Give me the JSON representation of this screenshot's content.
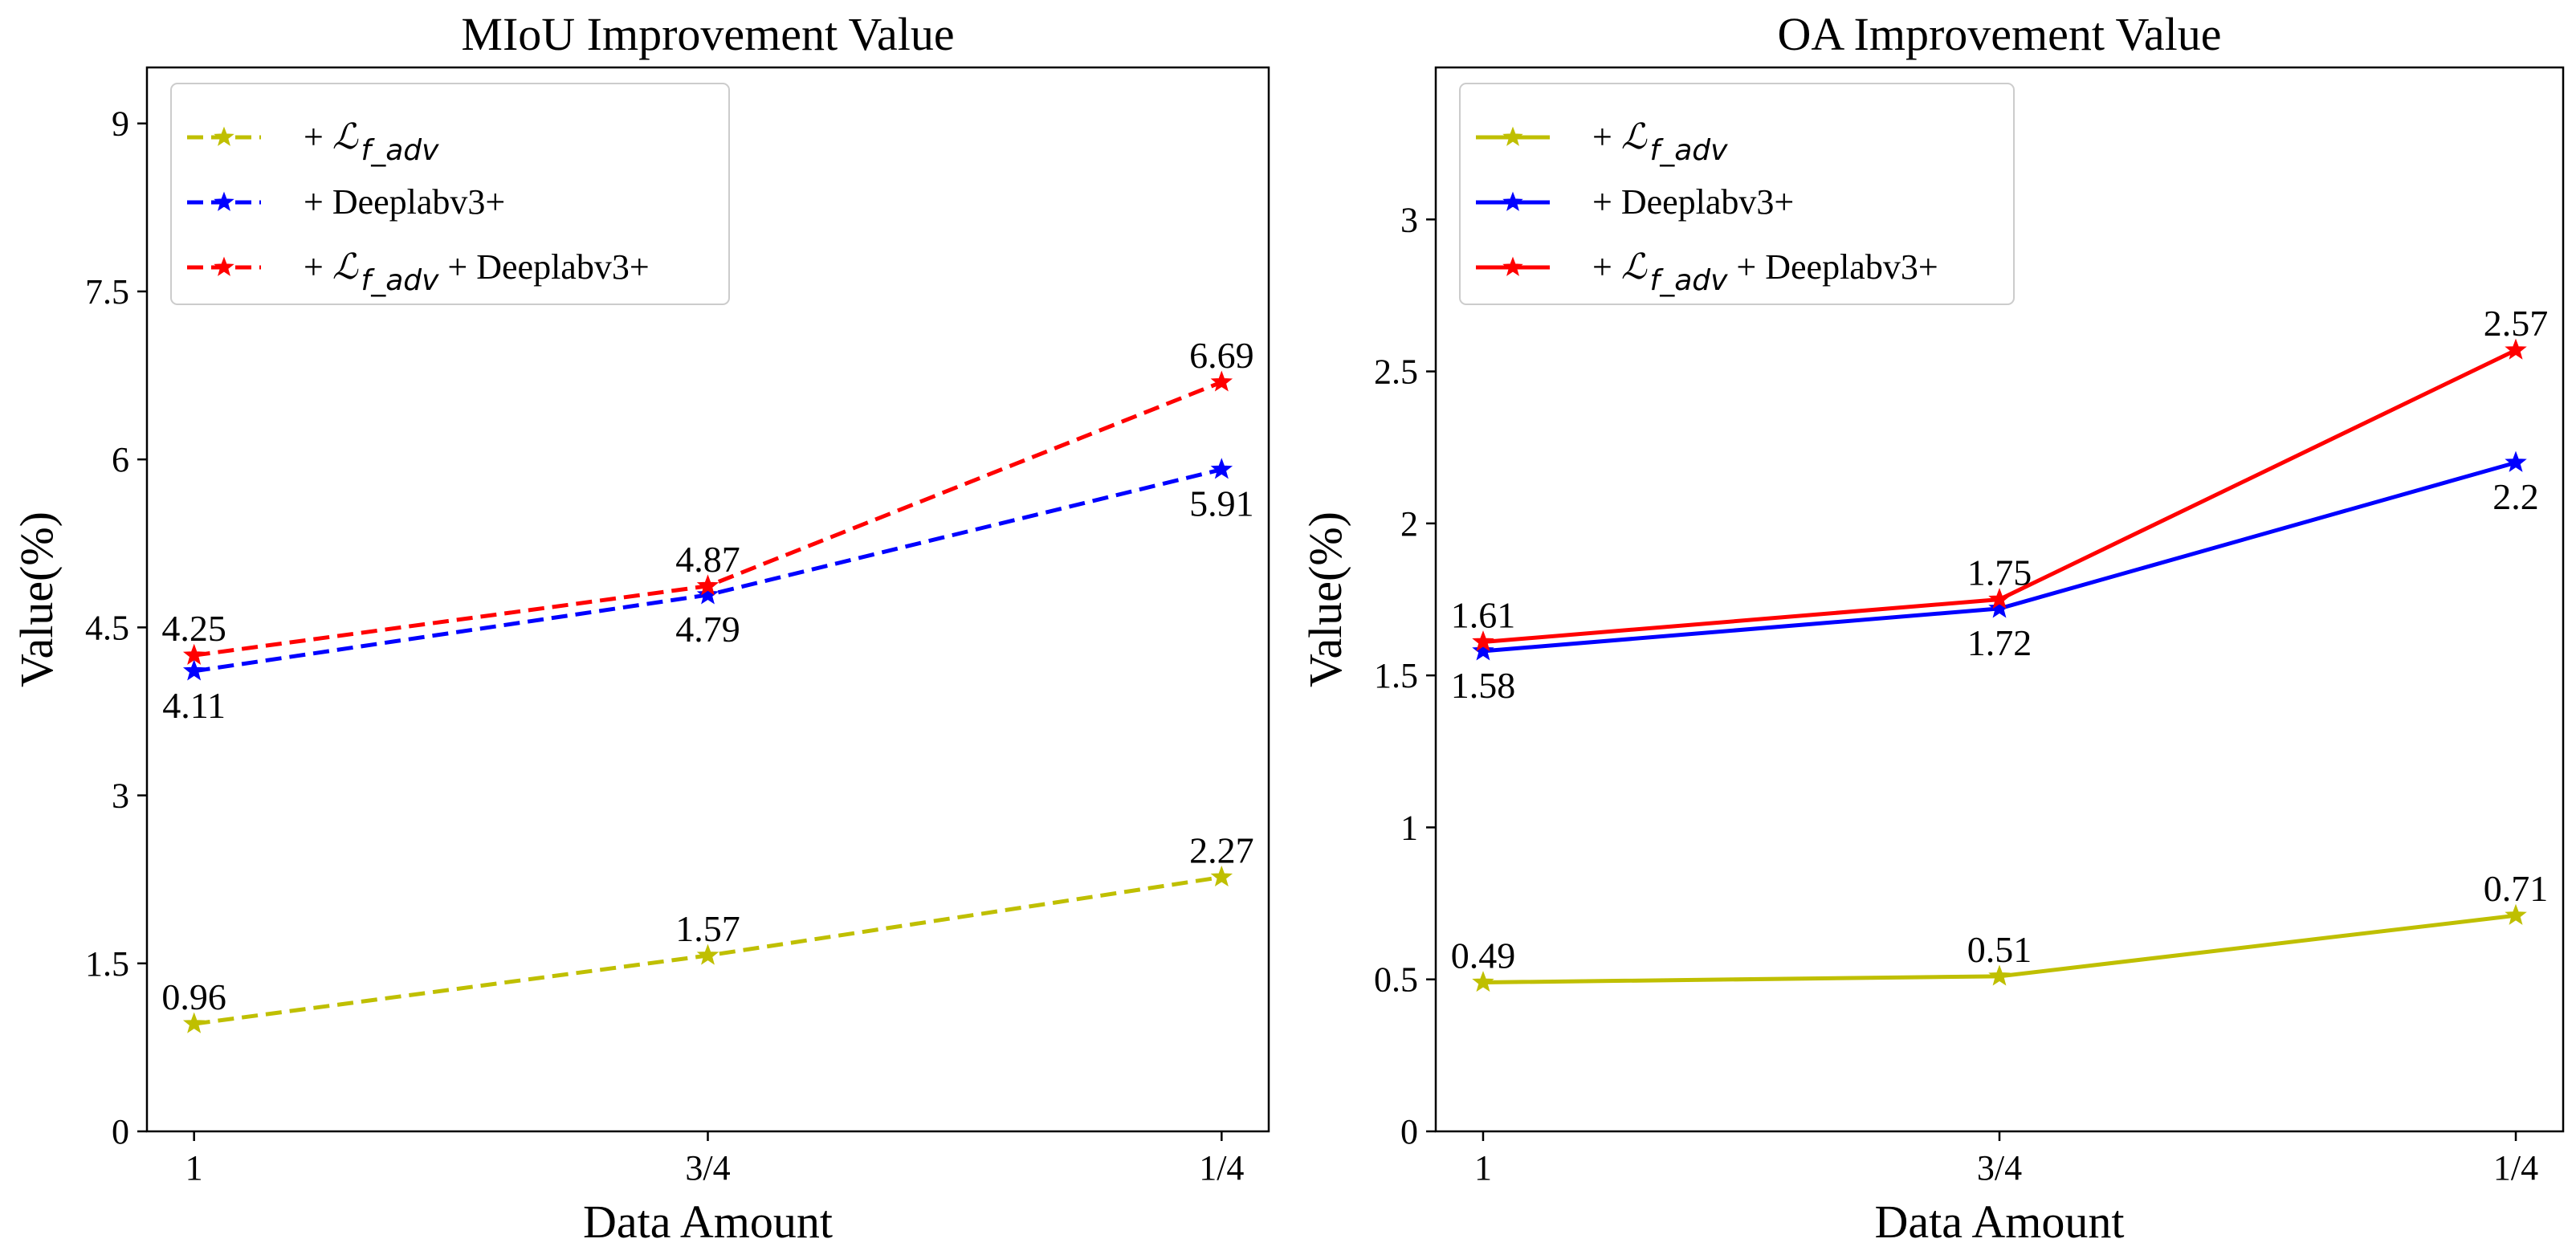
{
  "chart_data": [
    {
      "type": "line",
      "title": "MIoU Improvement Value",
      "xlabel": "Data Amount",
      "ylabel": "Value(%)",
      "categories": [
        "1",
        "3/4",
        "1/4"
      ],
      "ylim": [
        0,
        9.5
      ],
      "yticks": [
        "0",
        "1.5",
        "3",
        "4.5",
        "6",
        "7.5",
        "9"
      ],
      "yticks_values": [
        0,
        1.5,
        3,
        4.5,
        6,
        7.5,
        9
      ],
      "line_style": "dashed",
      "legend_position": "top-left",
      "series": [
        {
          "name_prefix": "+ ",
          "name_math": "ℒ",
          "name_sub": "f_adv",
          "name_suffix": "",
          "color": "#bfbf00",
          "values": [
            0.96,
            1.57,
            2.27
          ],
          "labels": [
            "0.96",
            "1.57",
            "2.27"
          ],
          "label_pos": [
            "above",
            "above",
            "above"
          ]
        },
        {
          "name_prefix": "+ Deeplabv3+",
          "name_math": "",
          "name_sub": "",
          "name_suffix": "",
          "color": "#0000ff",
          "values": [
            4.11,
            4.79,
            5.91
          ],
          "labels": [
            "4.11",
            "4.79",
            "5.91"
          ],
          "label_pos": [
            "below",
            "below",
            "below"
          ]
        },
        {
          "name_prefix": "+ ",
          "name_math": "ℒ",
          "name_sub": "f_adv",
          "name_suffix": " + Deeplabv3+",
          "color": "#ff0000",
          "values": [
            4.25,
            4.87,
            6.69
          ],
          "labels": [
            "4.25",
            "4.87",
            "6.69"
          ],
          "label_pos": [
            "above",
            "above",
            "above"
          ]
        }
      ]
    },
    {
      "type": "line",
      "title": "OA Improvement Value",
      "xlabel": "Data Amount",
      "ylabel": "Value(%)",
      "categories": [
        "1",
        "3/4",
        "1/4"
      ],
      "ylim": [
        0,
        3.5
      ],
      "yticks": [
        "0",
        "0.5",
        "1",
        "1.5",
        "2",
        "2.5",
        "3"
      ],
      "yticks_values": [
        0,
        0.5,
        1,
        1.5,
        2,
        2.5,
        3
      ],
      "line_style": "solid",
      "legend_position": "top-left",
      "series": [
        {
          "name_prefix": "+ ",
          "name_math": "ℒ",
          "name_sub": "f_adv",
          "name_suffix": "",
          "color": "#bfbf00",
          "values": [
            0.49,
            0.51,
            0.71
          ],
          "labels": [
            "0.49",
            "0.51",
            "0.71"
          ],
          "label_pos": [
            "above",
            "above",
            "above"
          ]
        },
        {
          "name_prefix": "+ Deeplabv3+",
          "name_math": "",
          "name_sub": "",
          "name_suffix": "",
          "color": "#0000ff",
          "values": [
            1.58,
            1.72,
            2.2
          ],
          "labels": [
            "1.58",
            "1.72",
            "2.2"
          ],
          "label_pos": [
            "below",
            "below",
            "below"
          ]
        },
        {
          "name_prefix": "+ ",
          "name_math": "ℒ",
          "name_sub": "f_adv",
          "name_suffix": " + Deeplabv3+",
          "color": "#ff0000",
          "values": [
            1.61,
            1.75,
            2.57
          ],
          "labels": [
            "1.61",
            "1.75",
            "2.57"
          ],
          "label_pos": [
            "above",
            "above",
            "above"
          ]
        }
      ]
    }
  ]
}
